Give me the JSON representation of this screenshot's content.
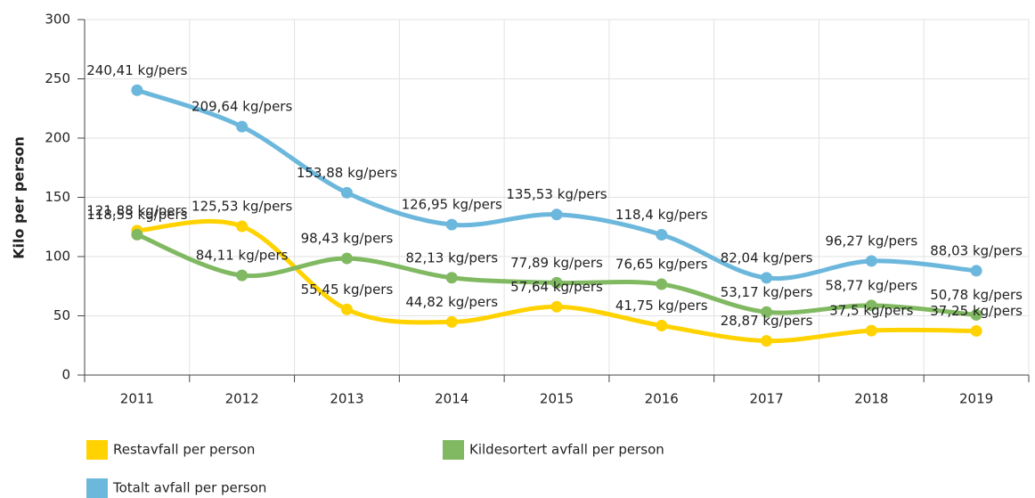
{
  "chart_data": {
    "type": "line",
    "y_label": "Kilo per person",
    "categories": [
      "2011",
      "2012",
      "2013",
      "2014",
      "2015",
      "2016",
      "2017",
      "2018",
      "2019"
    ],
    "series": [
      {
        "name": "Restavfall per person",
        "color": "#ffd200",
        "values": [
          121.88,
          125.53,
          55.45,
          44.82,
          57.64,
          41.75,
          28.87,
          37.5,
          37.25
        ],
        "value_labels": [
          "121,88 kg/pers",
          "125,53 kg/pers",
          "55,45 kg/pers",
          "44,82 kg/pers",
          "57,64 kg/pers",
          "41,75 kg/pers",
          "28,87 kg/pers",
          "37,5 kg/pers",
          "37,25 kg/pers"
        ]
      },
      {
        "name": "Kildesortert avfall per person",
        "color": "#80b961",
        "values": [
          118.53,
          84.11,
          98.43,
          82.13,
          77.89,
          76.65,
          53.17,
          58.77,
          50.78
        ],
        "value_labels": [
          "118,53 kg/pers",
          "84,11 kg/pers",
          "98,43 kg/pers",
          "82,13 kg/pers",
          "77,89 kg/pers",
          "76,65 kg/pers",
          "53,17 kg/pers",
          "58,77 kg/pers",
          "50,78 kg/pers"
        ]
      },
      {
        "name": "Totalt avfall per person",
        "color": "#6cb7dc",
        "values": [
          240.41,
          209.64,
          153.88,
          126.95,
          135.53,
          118.4,
          82.04,
          96.27,
          88.03
        ],
        "value_labels": [
          "240,41 kg/pers",
          "209,64 kg/pers",
          "153,88 kg/pers",
          "126,95 kg/pers",
          "135,53 kg/pers",
          "118,4 kg/pers",
          "82,04 kg/pers",
          "96,27 kg/pers",
          "88,03 kg/pers"
        ]
      }
    ],
    "ylim": [
      0,
      300
    ],
    "yticks": [
      0,
      50,
      100,
      150,
      200,
      250,
      300
    ],
    "grid": true
  }
}
